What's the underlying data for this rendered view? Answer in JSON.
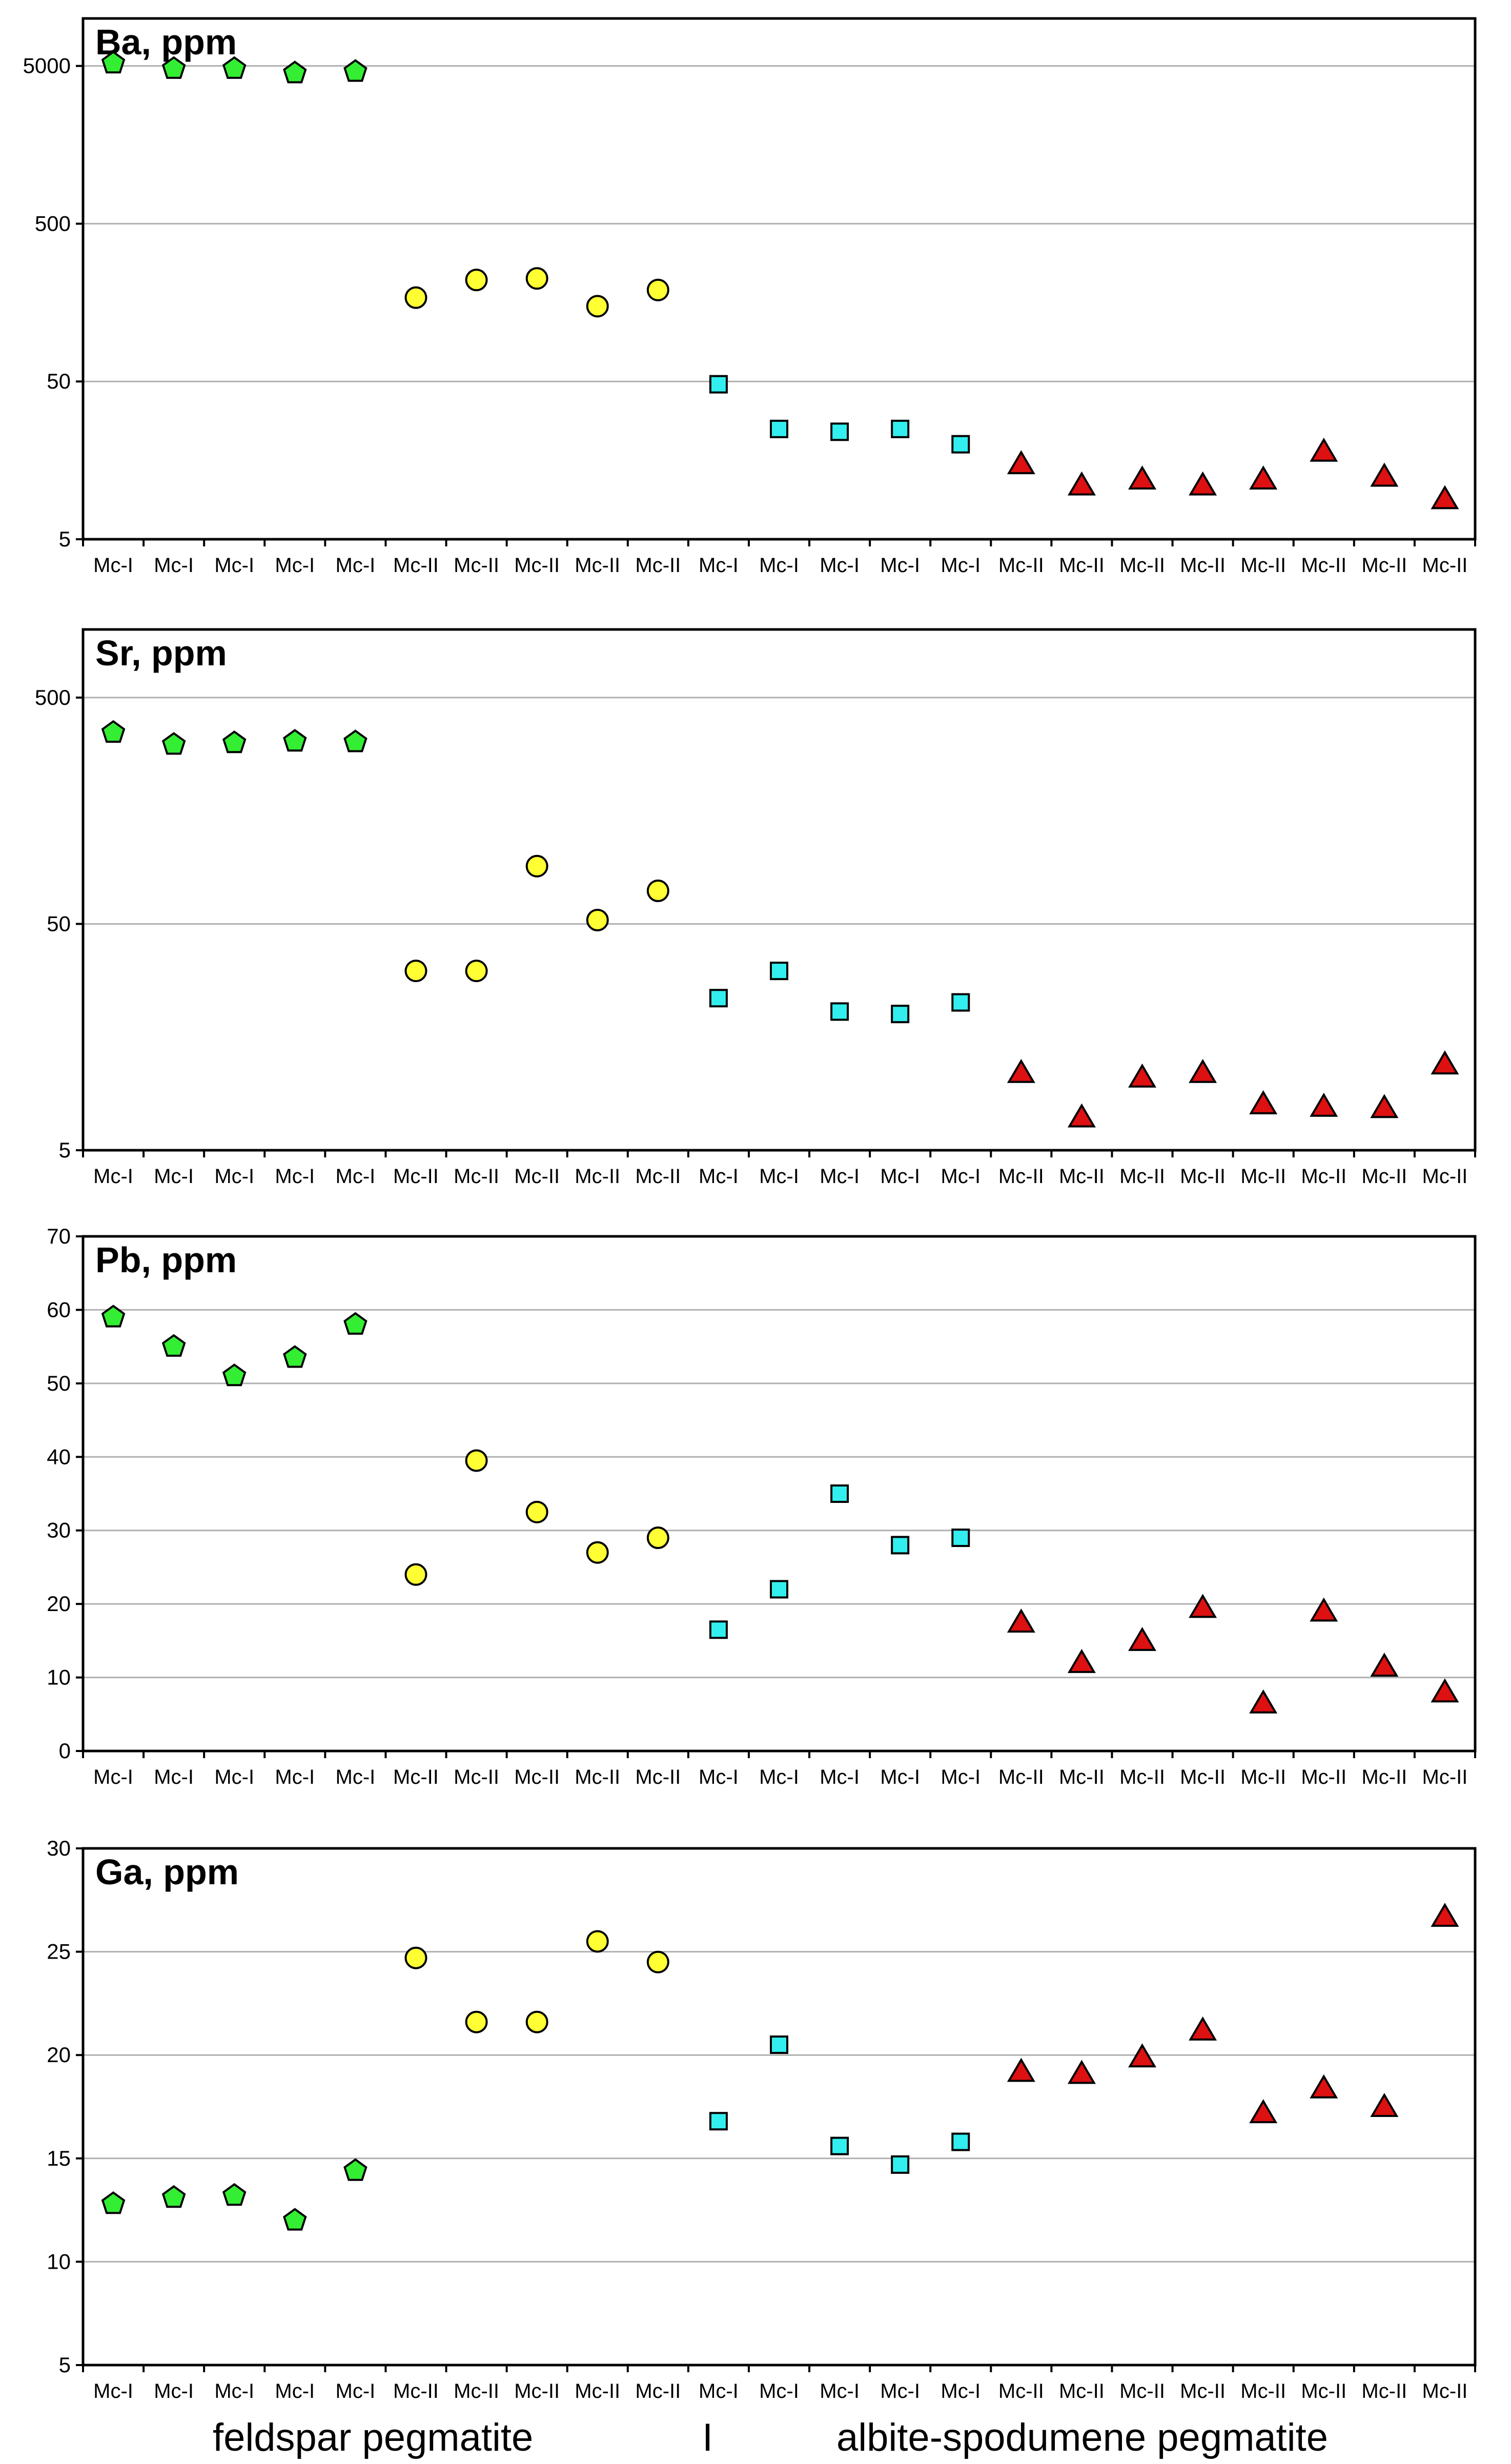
{
  "colors": {
    "feldspar_I": "#33ee33",
    "feldspar_II": "#ffff33",
    "albite_I": "#33eeee",
    "albite_II": "#dd1111",
    "marker_stroke": "#000000",
    "gridline": "#b0b0b0",
    "frame": "#000000"
  },
  "footer": {
    "left": "feldspar pegmatite",
    "divider": "I",
    "right": "albite-spodumene pegmatite"
  },
  "chart_data": [
    {
      "type": "scatter",
      "title": "Ba, ppm",
      "yscale": "log",
      "ylim": [
        5,
        10000
      ],
      "yticks": [
        5,
        50,
        500,
        5000
      ],
      "categories": [
        "Mc-I",
        "Mc-I",
        "Mc-I",
        "Mc-I",
        "Mc-I",
        "Mc-II",
        "Mc-II",
        "Mc-II",
        "Mc-II",
        "Mc-II",
        "Mc-I",
        "Mc-I",
        "Mc-I",
        "Mc-I",
        "Mc-I",
        "Mc-II",
        "Mc-II",
        "Mc-II",
        "Mc-II",
        "Mc-II",
        "Mc-II",
        "Mc-II",
        "Mc-II"
      ],
      "series": [
        {
          "name": "Mc-I feldspar pegmatite",
          "marker": "pentagon",
          "color_key": "feldspar_I",
          "values": [
            5200,
            4800,
            4800,
            4500,
            4600
          ]
        },
        {
          "name": "Mc-II feldspar pegmatite",
          "marker": "circle",
          "color_key": "feldspar_II",
          "values": [
            170,
            220,
            225,
            150,
            190
          ]
        },
        {
          "name": "Mc-I albite-spodumene pegmatite",
          "marker": "square",
          "color_key": "albite_I",
          "values": [
            48,
            25,
            24,
            25,
            20
          ]
        },
        {
          "name": "Mc-II albite-spodumene pegmatite",
          "marker": "triangle",
          "color_key": "albite_II",
          "values": [
            15,
            11,
            12,
            11,
            12,
            18,
            12.5,
            9
          ]
        }
      ]
    },
    {
      "type": "scatter",
      "title": "Sr, ppm",
      "yscale": "log",
      "ylim": [
        5,
        1000
      ],
      "yticks": [
        5,
        50,
        500
      ],
      "categories": [
        "Mc-I",
        "Mc-I",
        "Mc-I",
        "Mc-I",
        "Mc-I",
        "Mc-II",
        "Mc-II",
        "Mc-II",
        "Mc-II",
        "Mc-II",
        "Mc-I",
        "Mc-I",
        "Mc-I",
        "Mc-I",
        "Mc-I",
        "Mc-II",
        "Mc-II",
        "Mc-II",
        "Mc-II",
        "Mc-II",
        "Mc-II",
        "Mc-II",
        "Mc-II"
      ],
      "series": [
        {
          "name": "Mc-I feldspar pegmatite",
          "marker": "pentagon",
          "color_key": "feldspar_I",
          "values": [
            350,
            310,
            315,
            320,
            318
          ]
        },
        {
          "name": "Mc-II feldspar pegmatite",
          "marker": "circle",
          "color_key": "feldspar_II",
          "values": [
            31,
            31,
            90,
            52,
            70
          ]
        },
        {
          "name": "Mc-I albite-spodumene pegmatite",
          "marker": "square",
          "color_key": "albite_I",
          "values": [
            23.5,
            31,
            20.5,
            20,
            22.5
          ]
        },
        {
          "name": "Mc-II albite-spodumene pegmatite",
          "marker": "triangle",
          "color_key": "albite_II",
          "values": [
            11,
            7,
            10.5,
            11,
            8,
            7.8,
            7.7,
            12
          ]
        }
      ]
    },
    {
      "type": "scatter",
      "title": "Pb, ppm",
      "yscale": "linear",
      "ylim": [
        0,
        70
      ],
      "yticks": [
        0,
        10,
        20,
        30,
        40,
        50,
        60,
        70
      ],
      "categories": [
        "Mc-I",
        "Mc-I",
        "Mc-I",
        "Mc-I",
        "Mc-I",
        "Mc-II",
        "Mc-II",
        "Mc-II",
        "Mc-II",
        "Mc-II",
        "Mc-I",
        "Mc-I",
        "Mc-I",
        "Mc-I",
        "Mc-I",
        "Mc-II",
        "Mc-II",
        "Mc-II",
        "Mc-II",
        "Mc-II",
        "Mc-II",
        "Mc-II",
        "Mc-II"
      ],
      "series": [
        {
          "name": "Mc-I feldspar pegmatite",
          "marker": "pentagon",
          "color_key": "feldspar_I",
          "values": [
            59,
            55,
            51,
            53.5,
            58
          ]
        },
        {
          "name": "Mc-II feldspar pegmatite",
          "marker": "circle",
          "color_key": "feldspar_II",
          "values": [
            24,
            39.5,
            32.5,
            27,
            29
          ]
        },
        {
          "name": "Mc-I albite-spodumene pegmatite",
          "marker": "square",
          "color_key": "albite_I",
          "values": [
            16.5,
            22,
            35,
            28,
            29
          ]
        },
        {
          "name": "Mc-II albite-spodumene pegmatite",
          "marker": "triangle",
          "color_key": "albite_II",
          "values": [
            17.5,
            12,
            15,
            19.5,
            6.5,
            19,
            11.5,
            8
          ]
        }
      ]
    },
    {
      "type": "scatter",
      "title": "Ga, ppm",
      "yscale": "linear",
      "ylim": [
        5,
        30
      ],
      "yticks": [
        5,
        10,
        15,
        20,
        25,
        30
      ],
      "categories": [
        "Mc-I",
        "Mc-I",
        "Mc-I",
        "Mc-I",
        "Mc-I",
        "Mc-II",
        "Mc-II",
        "Mc-II",
        "Mc-II",
        "Mc-II",
        "Mc-I",
        "Mc-I",
        "Mc-I",
        "Mc-I",
        "Mc-I",
        "Mc-II",
        "Mc-II",
        "Mc-II",
        "Mc-II",
        "Mc-II",
        "Mc-II",
        "Mc-II",
        "Mc-II"
      ],
      "series": [
        {
          "name": "Mc-I feldspar pegmatite",
          "marker": "pentagon",
          "color_key": "feldspar_I",
          "values": [
            12.8,
            13.1,
            13.2,
            12,
            14.4
          ]
        },
        {
          "name": "Mc-II feldspar pegmatite",
          "marker": "circle",
          "color_key": "feldspar_II",
          "values": [
            24.7,
            21.6,
            21.6,
            25.5,
            24.5
          ]
        },
        {
          "name": "Mc-I albite-spodumene pegmatite",
          "marker": "square",
          "color_key": "albite_I",
          "values": [
            16.8,
            20.5,
            15.6,
            14.7,
            15.8
          ]
        },
        {
          "name": "Mc-II albite-spodumene pegmatite",
          "marker": "triangle",
          "color_key": "albite_II",
          "values": [
            19.2,
            19.1,
            19.9,
            21.2,
            17.2,
            18.4,
            17.5,
            26.7
          ]
        }
      ]
    }
  ]
}
